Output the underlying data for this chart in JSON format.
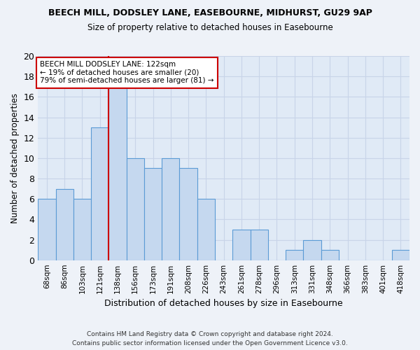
{
  "title": "BEECH MILL, DODSLEY LANE, EASEBOURNE, MIDHURST, GU29 9AP",
  "subtitle": "Size of property relative to detached houses in Easebourne",
  "xlabel": "Distribution of detached houses by size in Easebourne",
  "ylabel": "Number of detached properties",
  "categories": [
    "68sqm",
    "86sqm",
    "103sqm",
    "121sqm",
    "138sqm",
    "156sqm",
    "173sqm",
    "191sqm",
    "208sqm",
    "226sqm",
    "243sqm",
    "261sqm",
    "278sqm",
    "296sqm",
    "313sqm",
    "331sqm",
    "348sqm",
    "366sqm",
    "383sqm",
    "401sqm",
    "418sqm"
  ],
  "values": [
    6,
    7,
    6,
    13,
    17,
    10,
    9,
    10,
    9,
    6,
    0,
    3,
    3,
    0,
    1,
    2,
    1,
    0,
    0,
    0,
    1
  ],
  "bar_color": "#c5d8ef",
  "bar_edge_color": "#5b9bd5",
  "property_line_index": 4,
  "property_line_color": "#cc0000",
  "annotation_text": "BEECH MILL DODSLEY LANE: 122sqm\n← 19% of detached houses are smaller (20)\n79% of semi-detached houses are larger (81) →",
  "annotation_box_color": "#cc0000",
  "ylim": [
    0,
    20
  ],
  "yticks": [
    0,
    2,
    4,
    6,
    8,
    10,
    12,
    14,
    16,
    18,
    20
  ],
  "footer1": "Contains HM Land Registry data © Crown copyright and database right 2024.",
  "footer2": "Contains public sector information licensed under the Open Government Licence v3.0.",
  "background_color": "#eef2f8",
  "plot_background_color": "#e0eaf6",
  "grid_color": "#c8d4e8"
}
